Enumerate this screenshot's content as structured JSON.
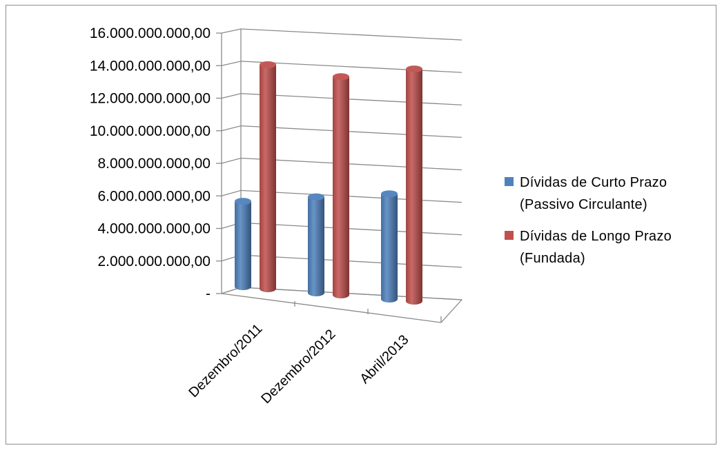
{
  "chart_data": {
    "type": "bar",
    "style": "3d-cylinder",
    "categories": [
      "Dezembro/2011",
      "Dezembro/2012",
      "Abril/2013"
    ],
    "series": [
      {
        "name": "Dívidas de Curto Prazo (Passivo Circulante)",
        "legend_lines": [
          "Dívidas de Curto Prazo",
          "(Passivo Circulante)"
        ],
        "color": "#4f81bd",
        "values": [
          5300000000,
          5900000000,
          6400000000
        ]
      },
      {
        "name": "Dívidas de Longo Prazo (Fundada)",
        "legend_lines": [
          "Dívidas de Longo Prazo",
          "(Fundada)"
        ],
        "color": "#c0504d",
        "values": [
          13800000000,
          13300000000,
          14000000000
        ]
      }
    ],
    "yticks": [
      0,
      2000000000,
      4000000000,
      6000000000,
      8000000000,
      10000000000,
      12000000000,
      14000000000,
      16000000000
    ],
    "ytick_labels": [
      "-",
      "2.000.000.000,00",
      "4.000.000.000,00",
      "6.000.000.000,00",
      "8.000.000.000,00",
      "10.000.000.000,00",
      "12.000.000.000,00",
      "14.000.000.000,00",
      "16.000.000.000,00"
    ],
    "ylim": [
      0,
      16000000000
    ],
    "title": "",
    "xlabel": "",
    "ylabel": "",
    "grid": true,
    "legend_position": "right"
  }
}
